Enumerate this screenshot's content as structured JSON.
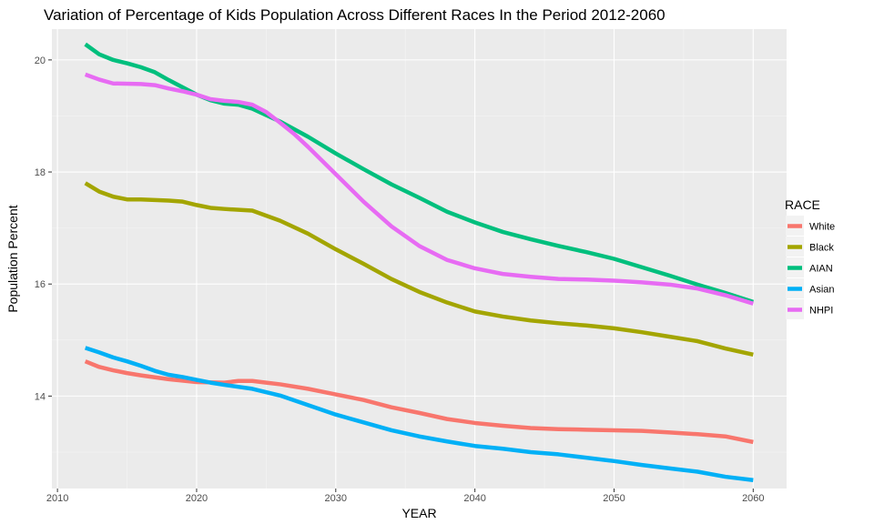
{
  "chart_data": {
    "type": "line",
    "title": "Variation of Percentage of Kids Population Across Different Races In the Period 2012-2060",
    "xlabel": "YEAR",
    "ylabel": "Population Percent",
    "xlim": [
      2009.6,
      2062.4
    ],
    "ylim": [
      12.35,
      20.55
    ],
    "x_ticks": [
      2010,
      2020,
      2030,
      2040,
      2050,
      2060
    ],
    "y_ticks": [
      14,
      16,
      18,
      20
    ],
    "grid": true,
    "legend_title": "RACE",
    "legend_position": "right",
    "series": [
      {
        "name": "White",
        "color": "#F8766D",
        "points": [
          [
            2012,
            14.62
          ],
          [
            2013,
            14.52
          ],
          [
            2014,
            14.46
          ],
          [
            2015,
            14.41
          ],
          [
            2016,
            14.37
          ],
          [
            2018,
            14.3
          ],
          [
            2020,
            14.25
          ],
          [
            2022,
            14.24
          ],
          [
            2023,
            14.27
          ],
          [
            2024,
            14.27
          ],
          [
            2025,
            14.24
          ],
          [
            2026,
            14.21
          ],
          [
            2028,
            14.13
          ],
          [
            2030,
            14.03
          ],
          [
            2032,
            13.93
          ],
          [
            2034,
            13.8
          ],
          [
            2036,
            13.7
          ],
          [
            2038,
            13.59
          ],
          [
            2040,
            13.52
          ],
          [
            2042,
            13.47
          ],
          [
            2044,
            13.43
          ],
          [
            2046,
            13.41
          ],
          [
            2048,
            13.4
          ],
          [
            2050,
            13.39
          ],
          [
            2052,
            13.38
          ],
          [
            2054,
            13.35
          ],
          [
            2056,
            13.32
          ],
          [
            2058,
            13.28
          ],
          [
            2060,
            13.18
          ]
        ]
      },
      {
        "name": "Black",
        "color": "#A3A500",
        "points": [
          [
            2012,
            17.8
          ],
          [
            2013,
            17.65
          ],
          [
            2014,
            17.56
          ],
          [
            2015,
            17.51
          ],
          [
            2016,
            17.51
          ],
          [
            2017,
            17.5
          ],
          [
            2018,
            17.49
          ],
          [
            2019,
            17.47
          ],
          [
            2020,
            17.41
          ],
          [
            2021,
            17.36
          ],
          [
            2022,
            17.34
          ],
          [
            2024,
            17.31
          ],
          [
            2026,
            17.13
          ],
          [
            2028,
            16.9
          ],
          [
            2030,
            16.62
          ],
          [
            2032,
            16.36
          ],
          [
            2034,
            16.09
          ],
          [
            2036,
            15.86
          ],
          [
            2038,
            15.67
          ],
          [
            2040,
            15.51
          ],
          [
            2042,
            15.42
          ],
          [
            2044,
            15.35
          ],
          [
            2046,
            15.3
          ],
          [
            2048,
            15.26
          ],
          [
            2050,
            15.21
          ],
          [
            2052,
            15.14
          ],
          [
            2054,
            15.06
          ],
          [
            2056,
            14.98
          ],
          [
            2058,
            14.85
          ],
          [
            2060,
            14.74
          ]
        ]
      },
      {
        "name": "AIAN",
        "color": "#00BF7D",
        "points": [
          [
            2012,
            20.28
          ],
          [
            2013,
            20.1
          ],
          [
            2014,
            20.0
          ],
          [
            2015,
            19.94
          ],
          [
            2016,
            19.87
          ],
          [
            2017,
            19.78
          ],
          [
            2018,
            19.64
          ],
          [
            2019,
            19.51
          ],
          [
            2020,
            19.38
          ],
          [
            2021,
            19.28
          ],
          [
            2022,
            19.22
          ],
          [
            2023,
            19.2
          ],
          [
            2024,
            19.13
          ],
          [
            2026,
            18.9
          ],
          [
            2028,
            18.63
          ],
          [
            2030,
            18.33
          ],
          [
            2032,
            18.05
          ],
          [
            2034,
            17.78
          ],
          [
            2036,
            17.54
          ],
          [
            2038,
            17.29
          ],
          [
            2040,
            17.1
          ],
          [
            2042,
            16.93
          ],
          [
            2044,
            16.8
          ],
          [
            2046,
            16.68
          ],
          [
            2048,
            16.57
          ],
          [
            2050,
            16.45
          ],
          [
            2052,
            16.3
          ],
          [
            2054,
            16.15
          ],
          [
            2056,
            15.99
          ],
          [
            2058,
            15.84
          ],
          [
            2060,
            15.68
          ]
        ]
      },
      {
        "name": "Asian",
        "color": "#00B0F6",
        "points": [
          [
            2012,
            14.86
          ],
          [
            2013,
            14.78
          ],
          [
            2014,
            14.69
          ],
          [
            2015,
            14.62
          ],
          [
            2016,
            14.54
          ],
          [
            2017,
            14.45
          ],
          [
            2018,
            14.38
          ],
          [
            2019,
            14.34
          ],
          [
            2020,
            14.29
          ],
          [
            2021,
            14.24
          ],
          [
            2022,
            14.2
          ],
          [
            2024,
            14.13
          ],
          [
            2026,
            14.01
          ],
          [
            2028,
            13.84
          ],
          [
            2030,
            13.67
          ],
          [
            2032,
            13.53
          ],
          [
            2034,
            13.39
          ],
          [
            2036,
            13.28
          ],
          [
            2038,
            13.19
          ],
          [
            2040,
            13.11
          ],
          [
            2042,
            13.06
          ],
          [
            2044,
            13.0
          ],
          [
            2046,
            12.96
          ],
          [
            2048,
            12.9
          ],
          [
            2050,
            12.84
          ],
          [
            2052,
            12.77
          ],
          [
            2054,
            12.71
          ],
          [
            2056,
            12.65
          ],
          [
            2058,
            12.56
          ],
          [
            2060,
            12.5
          ]
        ]
      },
      {
        "name": "NHPI",
        "color": "#E76BF3",
        "points": [
          [
            2012,
            19.74
          ],
          [
            2013,
            19.65
          ],
          [
            2014,
            19.58
          ],
          [
            2016,
            19.57
          ],
          [
            2017,
            19.55
          ],
          [
            2018,
            19.49
          ],
          [
            2019,
            19.44
          ],
          [
            2020,
            19.38
          ],
          [
            2021,
            19.3
          ],
          [
            2022,
            19.27
          ],
          [
            2023,
            19.25
          ],
          [
            2024,
            19.2
          ],
          [
            2025,
            19.07
          ],
          [
            2026,
            18.88
          ],
          [
            2027,
            18.68
          ],
          [
            2028,
            18.45
          ],
          [
            2030,
            17.96
          ],
          [
            2032,
            17.47
          ],
          [
            2034,
            17.03
          ],
          [
            2036,
            16.68
          ],
          [
            2038,
            16.43
          ],
          [
            2040,
            16.28
          ],
          [
            2042,
            16.18
          ],
          [
            2044,
            16.13
          ],
          [
            2046,
            16.09
          ],
          [
            2048,
            16.08
          ],
          [
            2050,
            16.06
          ],
          [
            2052,
            16.03
          ],
          [
            2054,
            15.99
          ],
          [
            2056,
            15.92
          ],
          [
            2058,
            15.8
          ],
          [
            2060,
            15.65
          ]
        ]
      }
    ]
  }
}
